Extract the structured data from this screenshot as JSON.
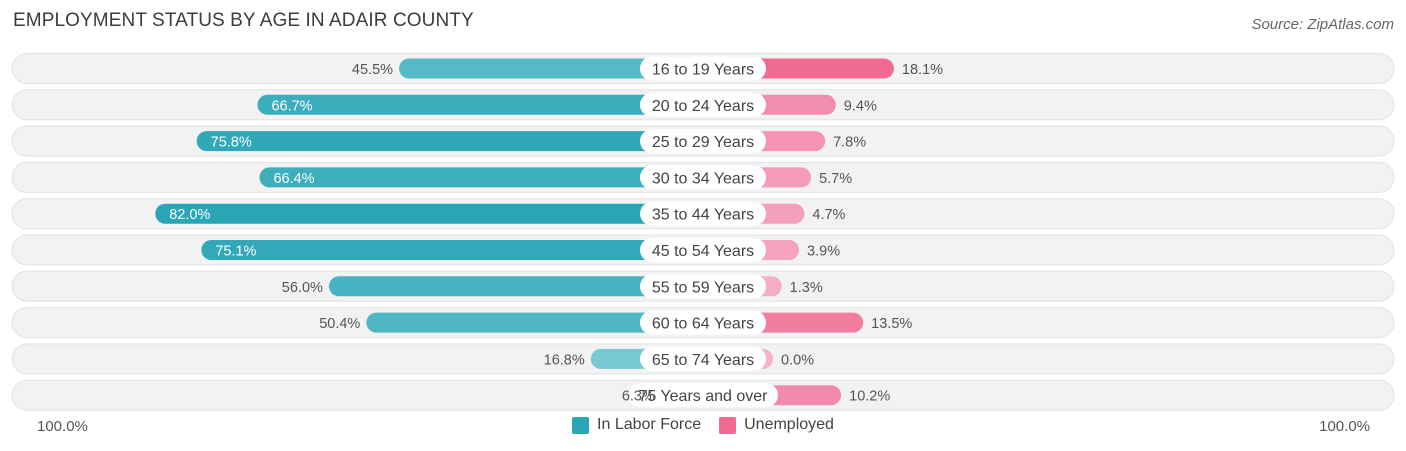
{
  "header": {
    "title": "EMPLOYMENT STATUS BY AGE IN ADAIR COUNTY",
    "source": "Source: ZipAtlas.com"
  },
  "axis": {
    "left_label": "100.0%",
    "right_label": "100.0%"
  },
  "legend": [
    {
      "label": "In Labor Force",
      "color": "#2aa5b5"
    },
    {
      "label": "Unemployed",
      "color": "#f06a94"
    }
  ],
  "chart_data": {
    "type": "bar",
    "orientation": "horizontal-diverging",
    "title": "EMPLOYMENT STATUS BY AGE IN ADAIR COUNTY",
    "categories": [
      "16 to 19 Years",
      "20 to 24 Years",
      "25 to 29 Years",
      "30 to 34 Years",
      "35 to 44 Years",
      "45 to 54 Years",
      "55 to 59 Years",
      "60 to 64 Years",
      "65 to 74 Years",
      "75 Years and over"
    ],
    "series": [
      {
        "name": "In Labor Force",
        "values": [
          45.5,
          66.7,
          75.8,
          66.4,
          82.0,
          75.1,
          56.0,
          50.4,
          16.8,
          6.3
        ],
        "labels": [
          "45.5%",
          "66.7%",
          "75.8%",
          "66.4%",
          "82.0%",
          "75.1%",
          "56.0%",
          "50.4%",
          "16.8%",
          "6.3%"
        ]
      },
      {
        "name": "Unemployed",
        "values": [
          18.1,
          9.4,
          7.8,
          5.7,
          4.7,
          3.9,
          1.3,
          13.5,
          0.0,
          10.2
        ],
        "labels": [
          "18.1%",
          "9.4%",
          "7.8%",
          "5.7%",
          "4.7%",
          "3.9%",
          "1.3%",
          "13.5%",
          "0.0%",
          "10.2%"
        ]
      }
    ],
    "xlim": [
      -100,
      100
    ],
    "legend_position": "bottom-center",
    "grid": false
  }
}
